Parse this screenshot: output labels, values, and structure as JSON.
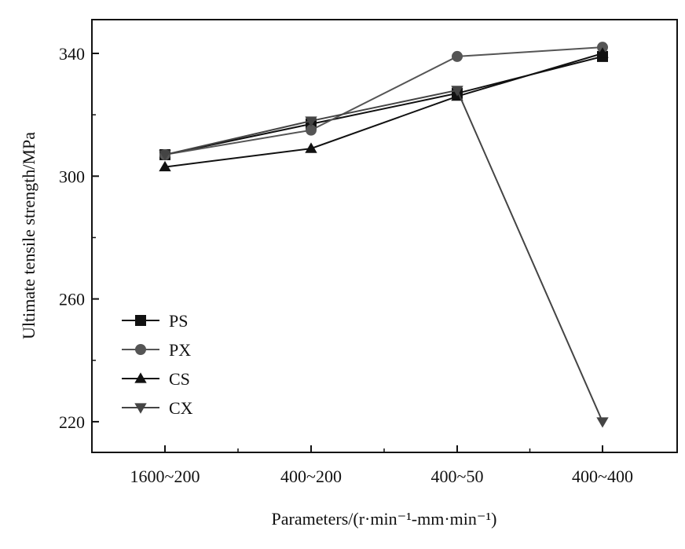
{
  "chart_data": {
    "type": "line",
    "categories": [
      "1600~200",
      "400~200",
      "400~50",
      "400~400"
    ],
    "xlabel": "Parameters/(r·min⁻¹-mm·min⁻¹)",
    "ylabel": "Ultimate tensile strength/MPa",
    "ylim": [
      210,
      351
    ],
    "yticks": [
      220,
      260,
      300,
      340
    ],
    "grid": false,
    "legend_position": "bottom-left",
    "series": [
      {
        "name": "PS",
        "marker": "square",
        "color": "#111111",
        "values": [
          307,
          317,
          327,
          339
        ]
      },
      {
        "name": "PX",
        "marker": "circle",
        "color": "#555555",
        "values": [
          307,
          315,
          339,
          342
        ]
      },
      {
        "name": "CS",
        "marker": "triangle-up",
        "color": "#111111",
        "values": [
          303,
          309,
          326,
          340
        ]
      },
      {
        "name": "CX",
        "marker": "triangle-down",
        "color": "#444444",
        "values": [
          307,
          318,
          328,
          220
        ]
      }
    ]
  }
}
